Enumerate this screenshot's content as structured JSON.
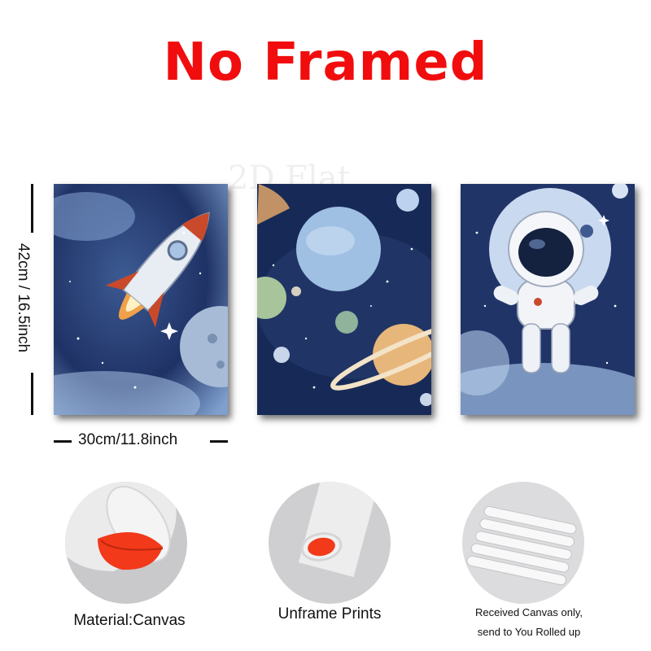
{
  "title": "No Framed",
  "watermark": "2D Flat",
  "dimensions": {
    "height_label": "42cm / 16.5inch",
    "width_label": "30cm/11.8inch"
  },
  "panels": [
    {
      "subject": "rocket"
    },
    {
      "subject": "planets"
    },
    {
      "subject": "astronaut"
    }
  ],
  "features": [
    {
      "caption": "Material:Canvas"
    },
    {
      "caption": "Unframe  Prints"
    },
    {
      "caption_line1": "Received Canvas only,",
      "caption_line2": "send to You Rolled up"
    }
  ],
  "colors": {
    "title": "#f10d0d",
    "space": "#1c2d5a",
    "canvas_red": "#f2391a"
  }
}
